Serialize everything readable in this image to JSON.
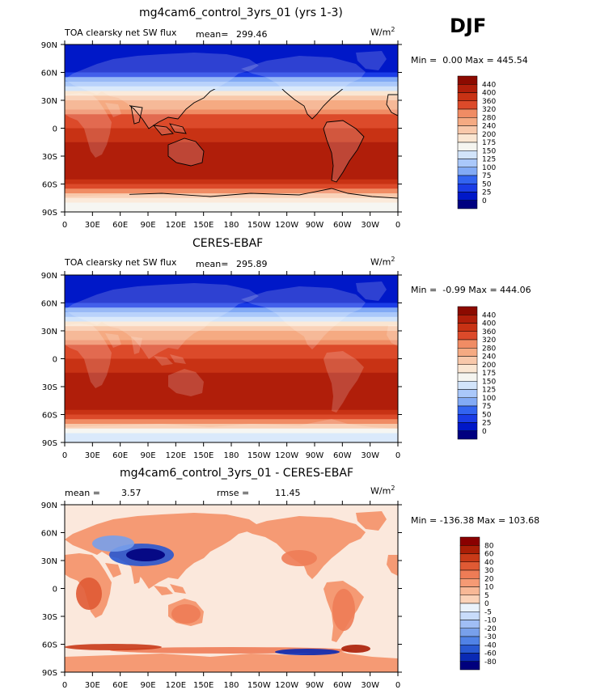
{
  "season": "DJF",
  "colors": {
    "abs_scale": [
      "#000080",
      "#0018c8",
      "#1a3ce6",
      "#3264f0",
      "#5a8cf0",
      "#82aaf5",
      "#aac8fa",
      "#d2e4fa",
      "#f5f5f0",
      "#fae6d2",
      "#f8c8aa",
      "#f5aa82",
      "#f08c64",
      "#e86a46",
      "#dc4a2a",
      "#c83214",
      "#b01e0a",
      "#8c0a00"
    ],
    "diff_scale": [
      "#00007d",
      "#0a2ab4",
      "#2858d2",
      "#5082e6",
      "#78a0eb",
      "#a0bef5",
      "#c8dcfa",
      "#eaf2fb",
      "#fbe8dc",
      "#fbd2b8",
      "#f8b896",
      "#f59a74",
      "#ee7c56",
      "#e05a34",
      "#c83a18",
      "#aa1e06",
      "#8a0000"
    ],
    "land": "#d89a78"
  },
  "panels": [
    {
      "id": "model",
      "title": "mg4cam6_control_3yrs_01 (yrs 1-3)",
      "left_text": "TOA clearsky net SW flux",
      "mean_label": "mean=",
      "mean_value": "299.46",
      "units": "W/m",
      "units_sup": "2",
      "min_label": "Min =",
      "min_value": "0.00",
      "max_label": "Max =",
      "max_value": "445.54"
    },
    {
      "id": "obs",
      "title": "CERES-EBAF",
      "left_text": "TOA clearsky net SW flux",
      "mean_label": "mean=",
      "mean_value": "295.89",
      "units": "W/m",
      "units_sup": "2",
      "min_label": "Min =",
      "min_value": "-0.99",
      "max_label": "Max =",
      "max_value": "444.06"
    },
    {
      "id": "diff",
      "title": "mg4cam6_control_3yrs_01 - CERES-EBAF",
      "left_text": "mean =",
      "mean_label": "",
      "mean_value": "3.57",
      "rmse_label": "rmse =",
      "rmse_value": "11.45",
      "units": "W/m",
      "units_sup": "2",
      "min_label": "Min =",
      "min_value": "-136.38",
      "max_label": "Max =",
      "max_value": "103.68"
    }
  ],
  "chart_data": [
    {
      "type": "heatmap",
      "title": "mg4cam6_control_3yrs_01 (yrs 1-3)",
      "variable": "TOA clearsky net SW flux",
      "units": "W/m2",
      "mean": 299.46,
      "min": 0.0,
      "max": 445.54,
      "x_ticks": [
        "0",
        "30E",
        "60E",
        "90E",
        "120E",
        "150E",
        "180",
        "150W",
        "120W",
        "90W",
        "60W",
        "30W",
        "0"
      ],
      "y_ticks": [
        "90N",
        "60N",
        "30N",
        "0",
        "30S",
        "60S",
        "90S"
      ],
      "colorbar_levels": [
        "440",
        "400",
        "360",
        "320",
        "280",
        "240",
        "200",
        "175",
        "150",
        "125",
        "100",
        "75",
        "50",
        "25",
        "0"
      ],
      "zonal_profile": {
        "lat": [
          90,
          80,
          70,
          60,
          50,
          40,
          30,
          20,
          10,
          0,
          -10,
          -20,
          -30,
          -40,
          -50,
          -60,
          -70,
          -80,
          -90
        ],
        "value": [
          0,
          0,
          5,
          30,
          90,
          160,
          230,
          290,
          330,
          360,
          390,
          410,
          430,
          440,
          420,
          380,
          260,
          150,
          150
        ]
      }
    },
    {
      "type": "heatmap",
      "title": "CERES-EBAF",
      "variable": "TOA clearsky net SW flux",
      "units": "W/m2",
      "mean": 295.89,
      "min": -0.99,
      "max": 444.06,
      "x_ticks": [
        "0",
        "30E",
        "60E",
        "90E",
        "120E",
        "150E",
        "180",
        "150W",
        "120W",
        "90W",
        "60W",
        "30W",
        "0"
      ],
      "y_ticks": [
        "90N",
        "60N",
        "30N",
        "0",
        "30S",
        "60S",
        "90S"
      ],
      "colorbar_levels": [
        "440",
        "400",
        "360",
        "320",
        "280",
        "240",
        "200",
        "175",
        "150",
        "125",
        "100",
        "75",
        "50",
        "25",
        "0"
      ],
      "zonal_profile": {
        "lat": [
          90,
          80,
          70,
          60,
          50,
          40,
          30,
          20,
          10,
          0,
          -10,
          -20,
          -30,
          -40,
          -50,
          -60,
          -70,
          -80,
          -90
        ],
        "value": [
          0,
          0,
          5,
          30,
          90,
          160,
          230,
          290,
          330,
          360,
          390,
          410,
          430,
          440,
          420,
          380,
          250,
          140,
          140
        ]
      }
    },
    {
      "type": "heatmap",
      "title": "mg4cam6_control_3yrs_01 - CERES-EBAF",
      "units": "W/m2",
      "mean": 3.57,
      "rmse": 11.45,
      "min": -136.38,
      "max": 103.68,
      "x_ticks": [
        "0",
        "30E",
        "60E",
        "90E",
        "120E",
        "150E",
        "180",
        "150W",
        "120W",
        "90W",
        "60W",
        "30W",
        "0"
      ],
      "y_ticks": [
        "90N",
        "60N",
        "30N",
        "0",
        "30S",
        "60S",
        "90S"
      ],
      "colorbar_levels": [
        "80",
        "60",
        "40",
        "30",
        "20",
        "10",
        "5",
        "0",
        "-5",
        "-10",
        "-20",
        "-30",
        "-40",
        "-60",
        "-80"
      ]
    }
  ]
}
